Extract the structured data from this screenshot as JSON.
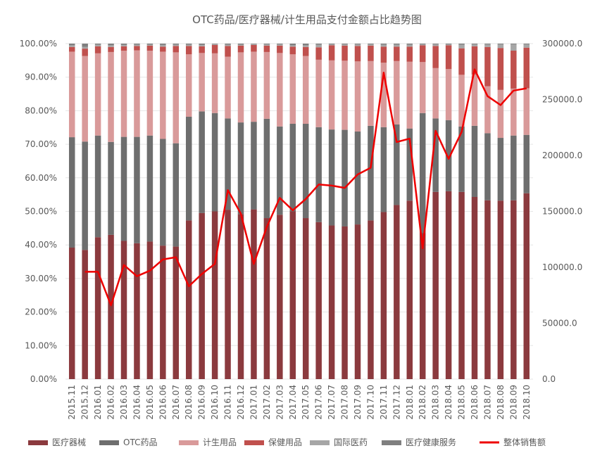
{
  "chart_data": {
    "type": "bar",
    "stacked": true,
    "title": "OTC药品/医疗器械/计生用品支付金额占比趋势图",
    "categories": [
      "2015.11",
      "2015.12",
      "2016.01",
      "2016.02",
      "2016.03",
      "2016.04",
      "2016.05",
      "2016.06",
      "2016.07",
      "2016.08",
      "2016.09",
      "2016.10",
      "2016.11",
      "2016.12",
      "2017.01",
      "2017.02",
      "2017.03",
      "2017.04",
      "2017.05",
      "2017.06",
      "2017.07",
      "2017.08",
      "2017.09",
      "2017.10",
      "2017.11",
      "2017.12",
      "2018.01",
      "2018.02",
      "2018.03",
      "2018.04",
      "2018.05",
      "2018.06",
      "2018.07",
      "2018.08",
      "2018.09",
      "2018.10"
    ],
    "y_left": {
      "range": [
        0,
        100
      ],
      "ticks": [
        0,
        10,
        20,
        30,
        40,
        50,
        60,
        70,
        80,
        90,
        100
      ],
      "tick_labels": [
        "0.00%",
        "10.00%",
        "20.00%",
        "30.00%",
        "40.00%",
        "50.00%",
        "60.00%",
        "70.00%",
        "80.00%",
        "90.00%",
        "100.00%"
      ]
    },
    "y_right": {
      "range": [
        0,
        300000
      ],
      "ticks": [
        0,
        50000,
        100000,
        150000,
        200000,
        250000,
        300000
      ],
      "tick_labels": [
        "0.0",
        "50000.0",
        "100000.0",
        "150000.0",
        "200000.0",
        "250000.0",
        "300000.0"
      ]
    },
    "series": [
      {
        "name": "医疗器械",
        "color": "#8b3a3e",
        "axis": "left",
        "values": [
          39.2,
          38.5,
          42.3,
          43.0,
          41.2,
          40.5,
          41.0,
          39.8,
          39.5,
          47.3,
          49.5,
          50.0,
          50.5,
          49.2,
          50.6,
          48.0,
          49.0,
          50.0,
          48.0,
          46.8,
          45.8,
          45.5,
          46.1,
          47.3,
          49.8,
          51.9,
          53.2,
          43.5,
          55.8,
          56.0,
          55.8,
          54.3,
          53.3,
          53.2,
          53.3,
          55.4
        ]
      },
      {
        "name": "OTC药品",
        "color": "#6e6e6e",
        "axis": "left",
        "values": [
          32.9,
          32.3,
          30.3,
          27.7,
          31.0,
          31.7,
          31.6,
          31.8,
          30.8,
          30.9,
          30.3,
          29.3,
          27.2,
          27.3,
          26.1,
          29.6,
          26.3,
          26.1,
          28.1,
          28.3,
          28.6,
          28.8,
          27.7,
          28.2,
          25.3,
          24.0,
          21.5,
          35.8,
          21.9,
          21.2,
          19.5,
          21.2,
          20.0,
          18.7,
          19.3,
          17.4
        ]
      },
      {
        "name": "计生用品",
        "color": "#d99a9a",
        "axis": "left",
        "values": [
          25.5,
          25.5,
          24.5,
          26.8,
          25.7,
          25.8,
          25.3,
          26.0,
          27.1,
          18.6,
          17.4,
          17.8,
          18.4,
          20.9,
          20.9,
          19.9,
          21.9,
          20.7,
          20.2,
          20.1,
          20.6,
          20.6,
          20.9,
          19.3,
          19.2,
          18.9,
          19.9,
          15.2,
          15.0,
          15.2,
          15.4,
          15.3,
          14.0,
          14.3,
          14.0,
          13.9
        ]
      },
      {
        "name": "保健用品",
        "color": "#c0504d",
        "axis": "left",
        "values": [
          1.4,
          2.2,
          2.1,
          1.5,
          1.3,
          1.3,
          1.5,
          1.5,
          1.9,
          2.5,
          2.0,
          2.5,
          3.2,
          2.0,
          2.0,
          1.9,
          2.2,
          2.3,
          2.7,
          3.7,
          4.5,
          4.5,
          4.6,
          4.6,
          4.8,
          4.3,
          4.5,
          5.0,
          6.6,
          7.1,
          7.9,
          8.4,
          11.7,
          12.5,
          11.3,
          12.1
        ]
      },
      {
        "name": "国际医药",
        "color": "#a6a6a6",
        "axis": "left",
        "values": [
          0.5,
          0.5,
          0.5,
          0.5,
          0.4,
          0.4,
          0.3,
          0.5,
          0.4,
          0.4,
          0.4,
          0.3,
          0.4,
          0.3,
          0.3,
          0.4,
          0.4,
          0.4,
          0.5,
          0.8,
          0.3,
          0.4,
          0.5,
          0.4,
          0.6,
          0.6,
          0.6,
          0.3,
          0.5,
          0.3,
          1.1,
          0.6,
          0.8,
          1.1,
          1.9,
          1.0
        ]
      },
      {
        "name": "医疗健康服务",
        "color": "#7f7f7f",
        "axis": "left",
        "values": [
          0.5,
          1.0,
          0.3,
          0.5,
          0.4,
          0.3,
          0.3,
          0.4,
          0.3,
          0.3,
          0.4,
          0.1,
          0.3,
          0.3,
          0.1,
          0.2,
          0.2,
          0.5,
          0.5,
          0.3,
          0.2,
          0.2,
          0.2,
          0.2,
          0.3,
          0.3,
          0.3,
          0.2,
          0.2,
          0.2,
          0.3,
          0.2,
          0.2,
          0.2,
          0.2,
          0.2
        ]
      },
      {
        "name": "整体销售额",
        "color": "#ee0000",
        "axis": "right",
        "type": "line",
        "values": [
          null,
          96000,
          96000,
          66000,
          102000,
          92000,
          97000,
          107000,
          109000,
          83000,
          94000,
          103000,
          169000,
          148000,
          103000,
          136000,
          162000,
          151000,
          161000,
          174000,
          173000,
          171000,
          183000,
          189000,
          274000,
          212000,
          215000,
          117000,
          222000,
          197000,
          221000,
          277000,
          253000,
          245000,
          258000,
          260000
        ]
      }
    ],
    "legend": [
      "医疗器械",
      "OTC药品",
      "计生用品",
      "保健用品",
      "国际医药",
      "医疗健康服务",
      "整体销售额"
    ],
    "legend_position": "bottom",
    "grid": true
  }
}
